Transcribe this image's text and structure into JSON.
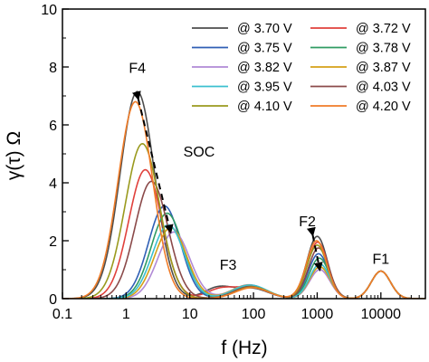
{
  "chart_data": {
    "type": "line",
    "xlabel": "f (Hz)",
    "ylabel": "γ(τ) Ω",
    "xscale": "log",
    "xlim": [
      0.1,
      50000
    ],
    "ylim": [
      0,
      10
    ],
    "xticks": [
      0.1,
      1,
      10,
      100,
      1000,
      10000
    ],
    "xtick_labels": [
      "0.1",
      "1",
      "10",
      "100",
      "1000",
      "10000"
    ],
    "yticks": [
      0,
      2,
      4,
      6,
      8,
      10
    ],
    "ytick_labels": [
      "0",
      "2",
      "4",
      "6",
      "8",
      "10"
    ],
    "grid": false,
    "legend_position": "top-right",
    "legend_columns": 2,
    "series": [
      {
        "name": "@ 3.70 V",
        "color": "#4d4d4d",
        "peaks": [
          [
            1.5,
            7.15,
            0.27
          ],
          [
            28,
            0.38,
            0.22
          ],
          [
            95,
            0.35,
            0.26
          ],
          [
            1000,
            2.15,
            0.16
          ],
          [
            10000,
            0.95,
            0.15
          ]
        ]
      },
      {
        "name": "@ 3.72 V",
        "color": "#e0413c",
        "peaks": [
          [
            2.0,
            4.45,
            0.26
          ],
          [
            30,
            0.32,
            0.22
          ],
          [
            95,
            0.38,
            0.26
          ],
          [
            1020,
            1.95,
            0.16
          ],
          [
            10000,
            0.95,
            0.15
          ]
        ]
      },
      {
        "name": "@ 3.75 V",
        "color": "#2f5fb5",
        "peaks": [
          [
            4.0,
            3.2,
            0.25
          ],
          [
            90,
            0.45,
            0.26
          ],
          [
            1050,
            1.55,
            0.16
          ],
          [
            10000,
            0.95,
            0.15
          ]
        ]
      },
      {
        "name": "@ 3.78 V",
        "color": "#2f9b63",
        "peaks": [
          [
            4.4,
            2.95,
            0.25
          ],
          [
            90,
            0.45,
            0.26
          ],
          [
            1080,
            1.4,
            0.16
          ],
          [
            10000,
            0.95,
            0.15
          ]
        ]
      },
      {
        "name": "@ 3.82 V",
        "color": "#b18ad6",
        "peaks": [
          [
            5.6,
            2.3,
            0.25
          ],
          [
            85,
            0.48,
            0.27
          ],
          [
            1100,
            1.0,
            0.16
          ],
          [
            10000,
            0.95,
            0.15
          ]
        ]
      },
      {
        "name": "@ 3.87 V",
        "color": "#d4a017",
        "peaks": [
          [
            5.0,
            2.45,
            0.25
          ],
          [
            85,
            0.47,
            0.27
          ],
          [
            1100,
            1.1,
            0.16
          ],
          [
            10000,
            0.95,
            0.15
          ]
        ]
      },
      {
        "name": "@ 3.95 V",
        "color": "#3cc0cf",
        "peaks": [
          [
            4.6,
            2.55,
            0.25
          ],
          [
            88,
            0.47,
            0.27
          ],
          [
            1100,
            1.2,
            0.16
          ],
          [
            10000,
            0.95,
            0.15
          ]
        ]
      },
      {
        "name": "@ 4.03 V",
        "color": "#8b4a4a",
        "peaks": [
          [
            2.5,
            4.05,
            0.26
          ],
          [
            90,
            0.42,
            0.26
          ],
          [
            1050,
            1.75,
            0.16
          ],
          [
            10000,
            0.95,
            0.15
          ]
        ]
      },
      {
        "name": "@ 4.10 V",
        "color": "#9a9a1e",
        "peaks": [
          [
            1.8,
            5.35,
            0.27
          ],
          [
            95,
            0.4,
            0.26
          ],
          [
            1000,
            1.85,
            0.16
          ],
          [
            10000,
            0.95,
            0.15
          ]
        ]
      },
      {
        "name": "@ 4.20 V",
        "color": "#f07c28",
        "peaks": [
          [
            1.4,
            6.8,
            0.27
          ],
          [
            95,
            0.38,
            0.26
          ],
          [
            980,
            2.0,
            0.16
          ],
          [
            10000,
            0.95,
            0.15
          ]
        ]
      }
    ],
    "annotations": [
      {
        "text": "F4",
        "x": 1.5,
        "y": 7.8
      },
      {
        "text": "SOC",
        "x": 14,
        "y": 4.9
      },
      {
        "text": "F3",
        "x": 40,
        "y": 1.0
      },
      {
        "text": "F2",
        "x": 700,
        "y": 2.5
      },
      {
        "text": "F1",
        "x": 10000,
        "y": 1.2
      }
    ],
    "arrows": [
      {
        "style": "dashed",
        "from": [
          1.55,
          6.9
        ],
        "to": [
          5.0,
          2.3
        ]
      },
      {
        "style": "dashed",
        "from": [
          850,
          2.2
        ],
        "to": [
          1100,
          1.0
        ]
      }
    ]
  }
}
